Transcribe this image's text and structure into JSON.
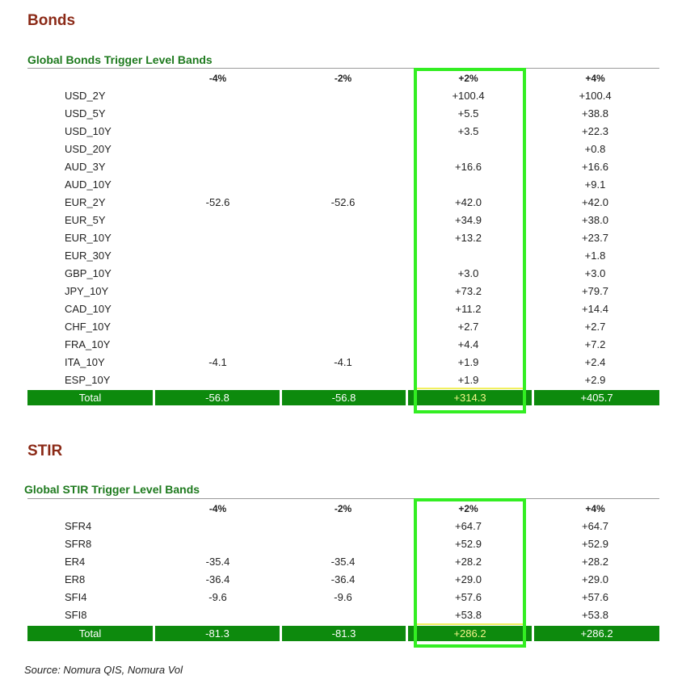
{
  "bonds": {
    "section_title": "Bonds",
    "table_title": "Global Bonds Trigger Level Bands",
    "headers": [
      "-4%",
      "-2%",
      "+2%",
      "+4%"
    ],
    "rows": [
      {
        "label": "USD_2Y",
        "v": [
          "",
          "",
          "+100.4",
          "+100.4"
        ]
      },
      {
        "label": "USD_5Y",
        "v": [
          "",
          "",
          "+5.5",
          "+38.8"
        ]
      },
      {
        "label": "USD_10Y",
        "v": [
          "",
          "",
          "+3.5",
          "+22.3"
        ]
      },
      {
        "label": "USD_20Y",
        "v": [
          "",
          "",
          "",
          "+0.8"
        ]
      },
      {
        "label": "AUD_3Y",
        "v": [
          "",
          "",
          "+16.6",
          "+16.6"
        ]
      },
      {
        "label": "AUD_10Y",
        "v": [
          "",
          "",
          "",
          "+9.1"
        ]
      },
      {
        "label": "EUR_2Y",
        "v": [
          "-52.6",
          "-52.6",
          "+42.0",
          "+42.0"
        ]
      },
      {
        "label": "EUR_5Y",
        "v": [
          "",
          "",
          "+34.9",
          "+38.0"
        ]
      },
      {
        "label": "EUR_10Y",
        "v": [
          "",
          "",
          "+13.2",
          "+23.7"
        ]
      },
      {
        "label": "EUR_30Y",
        "v": [
          "",
          "",
          "",
          "+1.8"
        ]
      },
      {
        "label": "GBP_10Y",
        "v": [
          "",
          "",
          "+3.0",
          "+3.0"
        ]
      },
      {
        "label": "JPY_10Y",
        "v": [
          "",
          "",
          "+73.2",
          "+79.7"
        ]
      },
      {
        "label": "CAD_10Y",
        "v": [
          "",
          "",
          "+11.2",
          "+14.4"
        ]
      },
      {
        "label": "CHF_10Y",
        "v": [
          "",
          "",
          "+2.7",
          "+2.7"
        ]
      },
      {
        "label": "FRA_10Y",
        "v": [
          "",
          "",
          "+4.4",
          "+7.2"
        ]
      },
      {
        "label": "ITA_10Y",
        "v": [
          "-4.1",
          "-4.1",
          "+1.9",
          "+2.4"
        ]
      },
      {
        "label": "ESP_10Y",
        "v": [
          "",
          "",
          "+1.9",
          "+2.9"
        ]
      }
    ],
    "total": {
      "label": "Total",
      "v": [
        "-56.8",
        "-56.8",
        "+314.3",
        "+405.7"
      ]
    }
  },
  "stir": {
    "section_title": "STIR",
    "table_title": "Global STIR Trigger Level Bands",
    "headers": [
      "-4%",
      "-2%",
      "+2%",
      "+4%"
    ],
    "rows": [
      {
        "label": "SFR4",
        "v": [
          "",
          "",
          "+64.7",
          "+64.7"
        ]
      },
      {
        "label": "SFR8",
        "v": [
          "",
          "",
          "+52.9",
          "+52.9"
        ]
      },
      {
        "label": "ER4",
        "v": [
          "-35.4",
          "-35.4",
          "+28.2",
          "+28.2"
        ]
      },
      {
        "label": "ER8",
        "v": [
          "-36.4",
          "-36.4",
          "+29.0",
          "+29.0"
        ]
      },
      {
        "label": "SFI4",
        "v": [
          "-9.6",
          "-9.6",
          "+57.6",
          "+57.6"
        ]
      },
      {
        "label": "SFI8",
        "v": [
          "",
          "",
          "+53.8",
          "+53.8"
        ]
      }
    ],
    "total": {
      "label": "Total",
      "v": [
        "-81.3",
        "-81.3",
        "+286.2",
        "+286.2"
      ]
    }
  },
  "source": "Source: Nomura QIS, Nomura Vol",
  "colors": {
    "section_title": "#8b2a17",
    "table_title": "#1e7a1e",
    "total_bg": "#0d8a0d",
    "highlight_box": "#33ee22"
  }
}
